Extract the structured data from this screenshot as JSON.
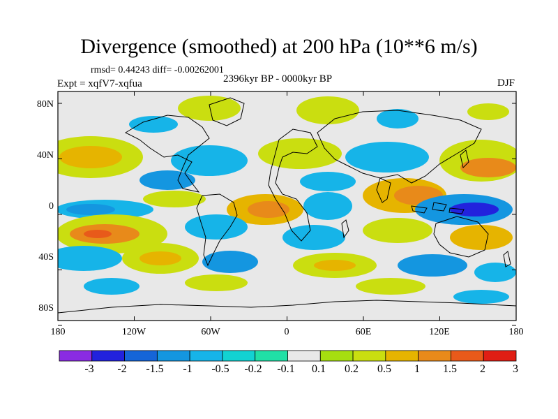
{
  "title": "Divergence (smoothed) at 200 hPa (10**6 m/s)",
  "stats": "rmsd= 0.44243 diff= -0.00262001",
  "experiment": "Expt = xqfV7-xqfua",
  "period": "2396kyr BP - 0000kyr BP",
  "season": "DJF",
  "y_axis": {
    "labels": [
      "80N",
      "40N",
      "0",
      "40S",
      "80S"
    ],
    "values": [
      80,
      40,
      0,
      -40,
      -80
    ]
  },
  "x_axis": {
    "labels": [
      "180",
      "120W",
      "60W",
      "0",
      "60E",
      "120E",
      "180"
    ],
    "values": [
      -180,
      -120,
      -60,
      0,
      60,
      120,
      180
    ]
  },
  "colorbar": {
    "labels": [
      "-3",
      "-2",
      "-1.5",
      "-1",
      "-0.5",
      "-0.2",
      "-0.1",
      "0.1",
      "0.2",
      "0.5",
      "1",
      "1.5",
      "2",
      "3"
    ],
    "colors": [
      "#8a2be2",
      "#2222dd",
      "#1565d8",
      "#1496e0",
      "#16b4e8",
      "#12d2d2",
      "#20e0a6",
      "#e8e8e8",
      "#a6de10",
      "#cade10",
      "#e6b400",
      "#e88a1a",
      "#e85a1a",
      "#e01e14"
    ]
  },
  "colors": {
    "land_outline": "#000000",
    "background": "#e8e8e8"
  }
}
